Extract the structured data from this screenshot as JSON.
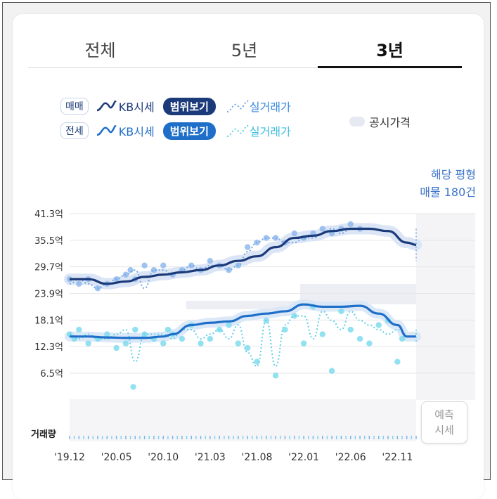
{
  "tabs": [
    {
      "label": "전체",
      "active": false
    },
    {
      "label": "5년",
      "active": false
    },
    {
      "label": "3년",
      "active": true
    }
  ],
  "legend": {
    "sale": {
      "pill": "매매",
      "kb": "KB시세",
      "range": "범위보기",
      "transaction": "실거래가",
      "color": "#1b3a7a",
      "tx_color": "#6fa8e8"
    },
    "jeonse": {
      "pill": "전세",
      "kb": "KB시세",
      "range": "범위보기",
      "transaction": "실거래가",
      "color": "#1f6fc9",
      "tx_color": "#5fd0e8"
    },
    "public_price": "공시가격"
  },
  "info": {
    "line1": "해당 평형",
    "line2": "매물 180건"
  },
  "predict": {
    "line1": "예측",
    "line2": "시세"
  },
  "volume_label": "거래량",
  "chart_data": {
    "type": "line",
    "y_ticks": [
      "41.3억",
      "35.5억",
      "29.7억",
      "23.9억",
      "18.1억",
      "12.3억",
      "6.5억"
    ],
    "y_values": [
      41.3,
      35.5,
      29.7,
      23.9,
      18.1,
      12.3,
      6.5
    ],
    "ylim": [
      3.5,
      41.3
    ],
    "x_ticks": [
      "'19.12",
      "'20.05",
      "'20.10",
      "'21.03",
      "'21.08",
      "'22.01",
      "'22.06",
      "'22.11"
    ],
    "x_tick_months": [
      0,
      5,
      10,
      15,
      20,
      25,
      30,
      35
    ],
    "xlim_months": [
      0,
      37
    ],
    "grid": true,
    "series": [
      {
        "name": "매매 KB시세",
        "months": [
          0,
          2,
          4,
          6,
          8,
          10,
          12,
          14,
          16,
          18,
          20,
          22,
          24,
          26,
          28,
          30,
          32,
          34,
          36,
          37
        ],
        "values": [
          27,
          27,
          26,
          26.5,
          27.5,
          28,
          28.5,
          29,
          30,
          31,
          32,
          34,
          36,
          36.5,
          37.5,
          38,
          38,
          37.5,
          35,
          34.5
        ]
      },
      {
        "name": "전세 KB시세",
        "months": [
          0,
          2,
          4,
          6,
          8,
          10,
          11,
          13,
          15,
          17,
          19,
          21,
          23,
          25,
          27,
          29,
          31,
          33,
          35,
          36,
          37
        ],
        "values": [
          14.5,
          14.5,
          14.3,
          14.2,
          14.2,
          14.5,
          15,
          17,
          17.5,
          17.8,
          19,
          19.5,
          20,
          21.5,
          21,
          21,
          21.2,
          19.5,
          17,
          14.5,
          14.5
        ]
      },
      {
        "name": "매매 실거래가",
        "months": [
          0,
          1,
          2,
          3,
          4,
          5,
          6,
          7,
          8,
          9,
          10,
          11,
          12,
          13,
          14,
          15,
          16,
          17,
          18,
          19,
          20,
          21,
          22,
          23,
          24,
          25,
          26,
          27,
          28,
          29,
          30
        ],
        "values": [
          26,
          27,
          26,
          25,
          26,
          27,
          28,
          29,
          25,
          29,
          29,
          28,
          29,
          30,
          29,
          30,
          30,
          29,
          30,
          33,
          35,
          36,
          36,
          35,
          35,
          36,
          36,
          37,
          38,
          37,
          38
        ]
      },
      {
        "name": "전세 실거래가",
        "months": [
          0,
          1,
          2,
          3,
          4,
          5,
          6,
          7,
          8,
          9,
          10,
          11,
          12,
          13,
          14,
          15,
          16,
          17,
          18,
          19,
          20,
          21,
          22,
          23,
          24,
          25,
          26,
          27,
          28,
          29,
          30,
          31,
          32,
          33,
          34,
          35,
          36
        ],
        "values": [
          15,
          14,
          15,
          14,
          14,
          15,
          16,
          9,
          15,
          15,
          15,
          14,
          16,
          16,
          14,
          15,
          16,
          14,
          17,
          11,
          8,
          18,
          8,
          17,
          19,
          19,
          14,
          20,
          18,
          16,
          20,
          18,
          17,
          16,
          15,
          16,
          15
        ]
      }
    ],
    "sale_points": {
      "months": [
        0,
        1,
        2,
        3,
        4,
        5,
        6,
        6.5,
        7,
        8,
        9,
        10,
        11,
        12,
        13,
        14,
        15,
        16,
        17,
        18,
        19,
        20,
        21,
        22,
        23,
        24,
        25,
        26,
        27,
        28,
        29,
        30,
        31
      ],
      "values": [
        27,
        26,
        27,
        25,
        26,
        27,
        28,
        29,
        27,
        30,
        29,
        30,
        28,
        29,
        30,
        29,
        31,
        30,
        29,
        30,
        34,
        35,
        36,
        36,
        35,
        37,
        36,
        37,
        38,
        37,
        38,
        39,
        38
      ]
    },
    "jeonse_points": {
      "months": [
        0,
        0.5,
        1,
        2,
        3,
        4,
        5,
        6,
        6.8,
        7,
        8,
        9,
        10,
        10.5,
        11,
        12,
        13,
        14,
        15,
        16,
        17,
        18,
        19,
        20,
        21,
        22,
        23,
        24,
        25,
        26,
        27,
        28,
        29,
        30,
        31,
        32,
        33,
        34,
        35,
        35.5
      ],
      "values": [
        15,
        14,
        16,
        13,
        14,
        15,
        12,
        13,
        3.5,
        16,
        15,
        14,
        13,
        16,
        15,
        14,
        17,
        13,
        14,
        16,
        17,
        13,
        12,
        9,
        18,
        6,
        16,
        19,
        13,
        21,
        15,
        7,
        20,
        16,
        14,
        13,
        17,
        18,
        9,
        14
      ]
    }
  }
}
